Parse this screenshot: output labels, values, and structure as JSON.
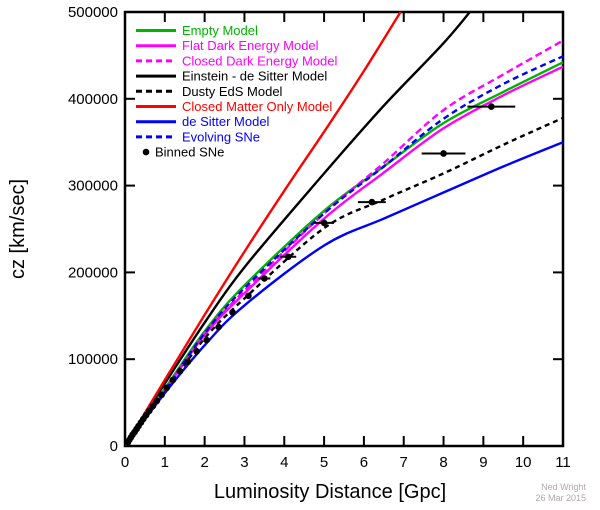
{
  "chart_data": {
    "type": "line",
    "title": "",
    "xlabel": "Luminosity Distance [Gpc]",
    "ylabel": "cz [km/sec]",
    "xlim": [
      0,
      11
    ],
    "ylim": [
      0,
      500000
    ],
    "xticks": [
      0,
      1,
      2,
      3,
      4,
      5,
      6,
      7,
      8,
      9,
      10,
      11
    ],
    "yticks": [
      0,
      100000,
      200000,
      300000,
      400000,
      500000
    ],
    "grid": false,
    "legend_position": "top-left-inside",
    "series": [
      {
        "name": "Empty Model",
        "color": "#00b400",
        "dash": "",
        "points": [
          [
            0,
            0
          ],
          [
            1,
            66000
          ],
          [
            2,
            132000
          ],
          [
            3,
            185000
          ],
          [
            5,
            271000
          ],
          [
            6.5,
            322000
          ],
          [
            8,
            372000
          ],
          [
            9.5,
            408000
          ],
          [
            11,
            442000
          ]
        ]
      },
      {
        "name": "Flat Dark Energy Model",
        "color": "#ff00ff",
        "dash": "",
        "points": [
          [
            0,
            0
          ],
          [
            1,
            64000
          ],
          [
            2,
            128000
          ],
          [
            3,
            176000
          ],
          [
            5,
            262000
          ],
          [
            6.5,
            315000
          ],
          [
            8,
            366000
          ],
          [
            9.5,
            404000
          ],
          [
            11,
            437000
          ]
        ]
      },
      {
        "name": "Closed Dark Energy Model",
        "color": "#ff00ff",
        "dash": "7,4",
        "points": [
          [
            0,
            0
          ],
          [
            1,
            64000
          ],
          [
            2,
            129000
          ],
          [
            3,
            179000
          ],
          [
            5,
            268000
          ],
          [
            6.5,
            326000
          ],
          [
            8,
            387000
          ],
          [
            9.5,
            428000
          ],
          [
            11,
            467000
          ]
        ]
      },
      {
        "name": "Einstein - de Sitter Model",
        "color": "#000000",
        "dash": "",
        "points": [
          [
            0,
            0
          ],
          [
            1,
            72000
          ],
          [
            2,
            142000
          ],
          [
            3,
            206000
          ],
          [
            5,
            314000
          ],
          [
            6.5,
            392000
          ],
          [
            8,
            464000
          ],
          [
            8.8,
            508000
          ]
        ]
      },
      {
        "name": "Dusty EdS Model",
        "color": "#000000",
        "dash": "5,4",
        "points": [
          [
            0,
            0
          ],
          [
            1,
            62000
          ],
          [
            2,
            124000
          ],
          [
            3,
            170000
          ],
          [
            5,
            251000
          ],
          [
            6.5,
            284000
          ],
          [
            8,
            314000
          ],
          [
            9.5,
            347000
          ],
          [
            11,
            378000
          ]
        ]
      },
      {
        "name": "Closed Matter Only Model",
        "color": "#ff0000",
        "dash": "",
        "points": [
          [
            0,
            0
          ],
          [
            1,
            76000
          ],
          [
            2,
            151000
          ],
          [
            3,
            224000
          ],
          [
            4,
            294000
          ],
          [
            5,
            362000
          ],
          [
            6,
            432000
          ],
          [
            7,
            506000
          ]
        ]
      },
      {
        "name": "de Sitter Model",
        "color": "#0000ff",
        "dash": "",
        "points": [
          [
            0,
            0
          ],
          [
            1,
            61000
          ],
          [
            2,
            116000
          ],
          [
            3,
            162000
          ],
          [
            5,
            231000
          ],
          [
            6.5,
            262000
          ],
          [
            8,
            292000
          ],
          [
            9.5,
            322000
          ],
          [
            11,
            350000
          ]
        ]
      },
      {
        "name": "Evolving SNe",
        "color": "#0000ff",
        "dash": "6,4",
        "points": [
          [
            0,
            0
          ],
          [
            1,
            64000
          ],
          [
            2,
            130000
          ],
          [
            3,
            182000
          ],
          [
            5,
            268000
          ],
          [
            6.5,
            322000
          ],
          [
            8,
            377000
          ],
          [
            9.5,
            417000
          ],
          [
            11,
            449000
          ]
        ]
      }
    ],
    "binned_sne": {
      "name": "Binned SNe",
      "color": "#000000",
      "points": [
        [
          0.07,
          4000,
          0
        ],
        [
          0.11,
          7000,
          0
        ],
        [
          0.15,
          10000,
          0
        ],
        [
          0.19,
          13000,
          0
        ],
        [
          0.24,
          16000,
          0
        ],
        [
          0.29,
          19500,
          0
        ],
        [
          0.34,
          23000,
          0
        ],
        [
          0.4,
          27000,
          0
        ],
        [
          0.46,
          31000,
          0
        ],
        [
          0.53,
          35500,
          0
        ],
        [
          0.61,
          40500,
          0
        ],
        [
          0.7,
          46000,
          0
        ],
        [
          0.8,
          52000,
          0
        ],
        [
          0.92,
          59000,
          0
        ],
        [
          1.05,
          67000,
          0
        ],
        [
          1.2,
          76000,
          0
        ],
        [
          1.38,
          86000,
          0
        ],
        [
          1.58,
          97000,
          0
        ],
        [
          1.8,
          109000,
          0
        ],
        [
          2.05,
          122000,
          0
        ],
        [
          2.35,
          137000,
          0
        ],
        [
          2.7,
          154000,
          0
        ],
        [
          3.1,
          173000,
          0
        ],
        [
          3.5,
          193000,
          0.15
        ],
        [
          4.1,
          218000,
          0.2
        ],
        [
          5.0,
          257000,
          0.25
        ],
        [
          6.2,
          281000,
          0.35
        ],
        [
          8.0,
          337000,
          0.55
        ],
        [
          9.2,
          391000,
          0.6
        ]
      ]
    },
    "legend": [
      {
        "label": "Empty Model",
        "color": "#00b400",
        "style": "solid"
      },
      {
        "label": "Flat Dark Energy Model",
        "color": "#ff00ff",
        "style": "solid"
      },
      {
        "label": "Closed Dark Energy Model",
        "color": "#ff00ff",
        "style": "dashed"
      },
      {
        "label": "Einstein - de Sitter Model",
        "color": "#000000",
        "style": "solid"
      },
      {
        "label": "Dusty EdS Model",
        "color": "#000000",
        "style": "dashed"
      },
      {
        "label": "Closed Matter Only Model",
        "color": "#ff0000",
        "style": "solid"
      },
      {
        "label": "de Sitter Model",
        "color": "#0000ff",
        "style": "solid"
      },
      {
        "label": "Evolving SNe",
        "color": "#0000ff",
        "style": "dashed"
      },
      {
        "label": "Binned SNe",
        "color": "#000000",
        "style": "dot"
      }
    ],
    "credit_line1": "Ned Wright",
    "credit_line2": "26 Mar 2015"
  }
}
